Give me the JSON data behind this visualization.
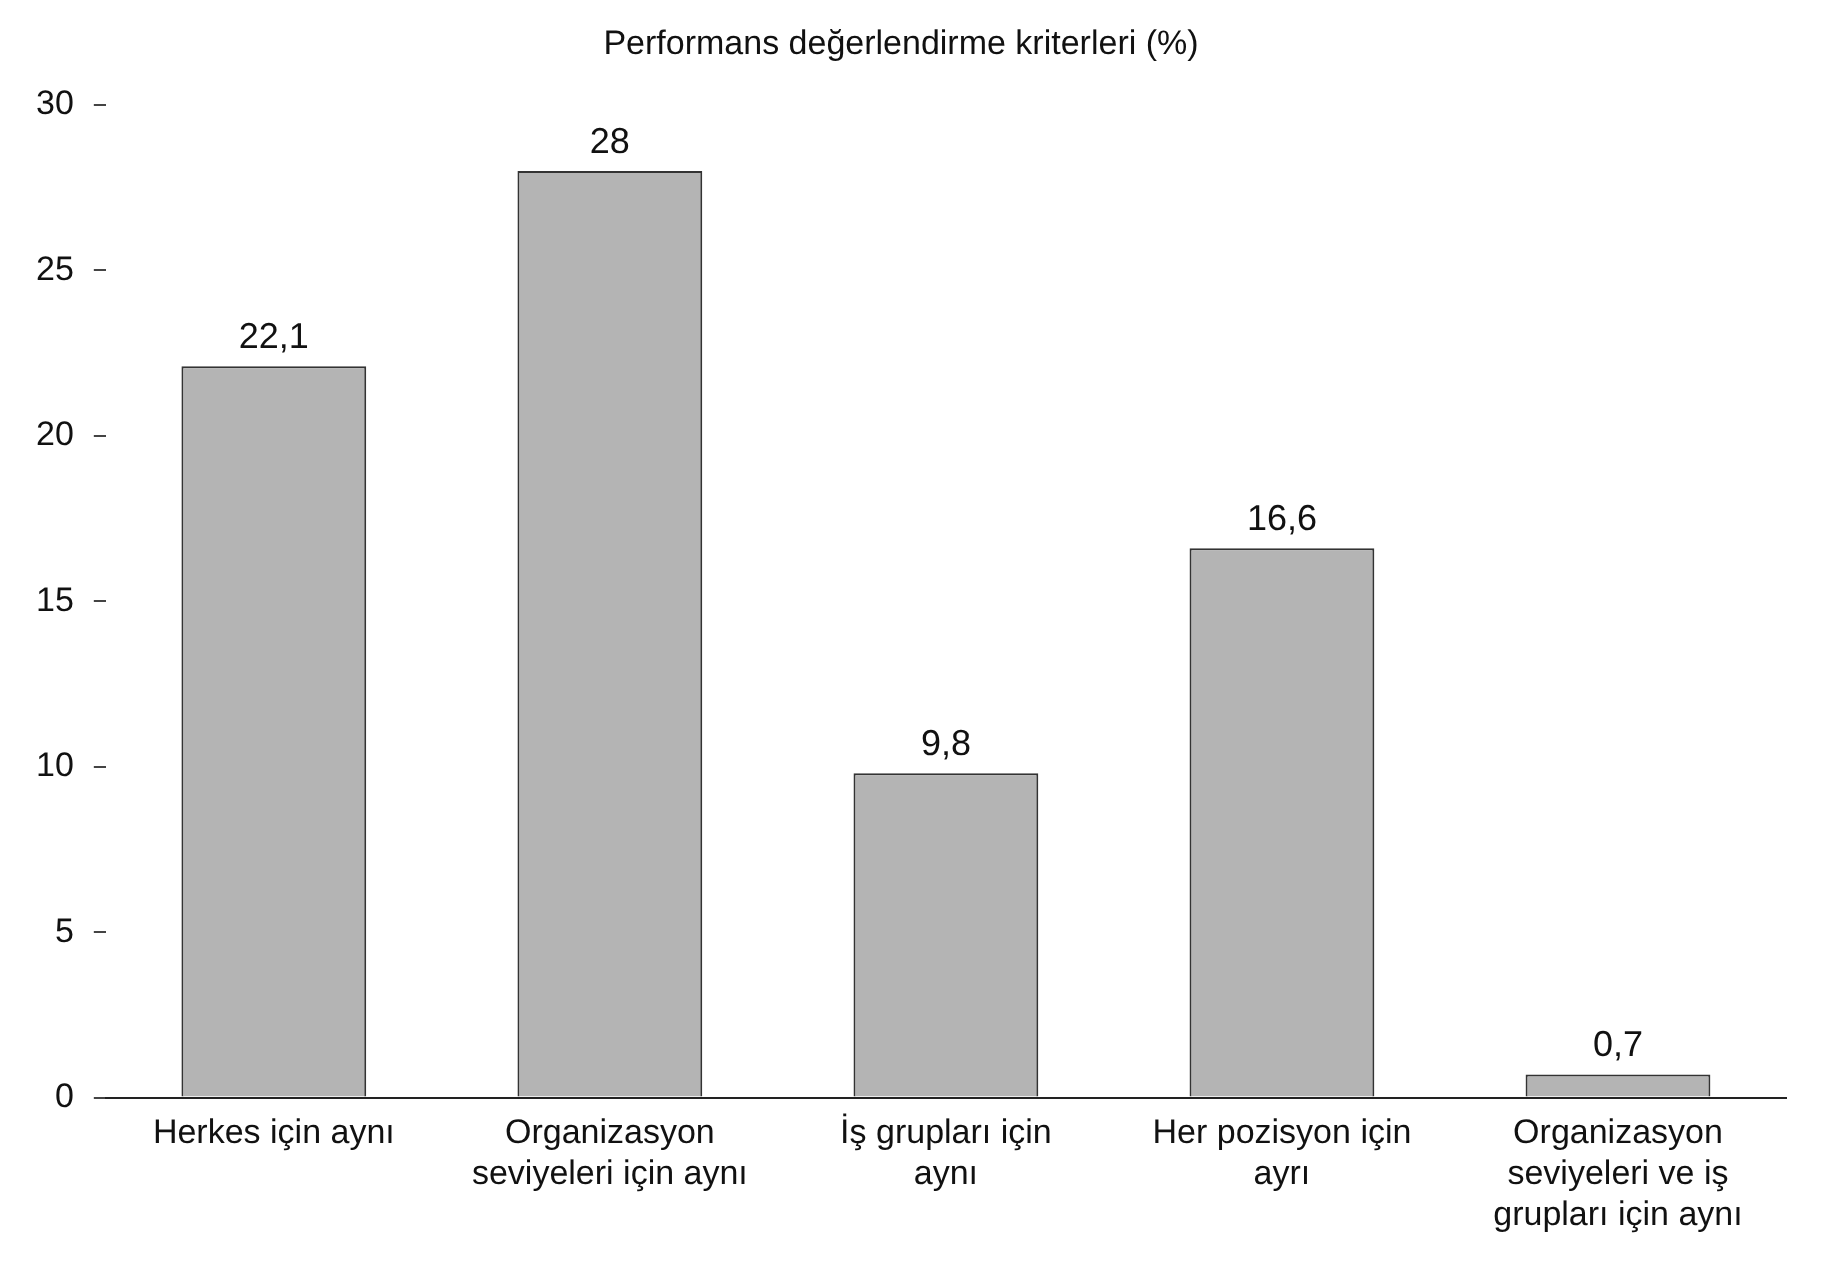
{
  "chart_data": {
    "type": "bar",
    "title": "Performans değerlendirme kriterleri (%)",
    "categories": [
      "Herkes için aynı",
      "Organizasyon seviyeleri için aynı",
      "İş grupları için aynı",
      "Her pozisyon için ayrı",
      "Organizasyon seviyeleri ve iş grupları için aynı"
    ],
    "values": [
      22.1,
      28,
      9.8,
      16.6,
      0.7
    ],
    "value_labels": [
      "22,1",
      "28",
      "9,8",
      "16,6",
      "0,7"
    ],
    "color": "#b4b4b4",
    "ylim": [
      0,
      30
    ],
    "yticks": [
      0,
      5,
      10,
      15,
      20,
      25,
      30
    ],
    "grid": false,
    "legend": false
  }
}
